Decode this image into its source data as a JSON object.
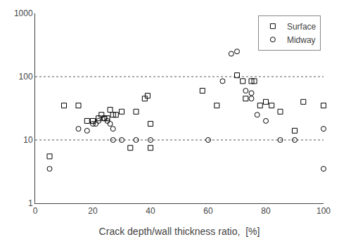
{
  "chart_data": {
    "type": "scatter",
    "xlabel": "Crack depth/wall thickness ratio,  [%]",
    "series": [
      {
        "name": "Surface",
        "color": "#000000",
        "marker": "square",
        "x": [
          5,
          10,
          15,
          18,
          20,
          22,
          23,
          24,
          25,
          26,
          27,
          28,
          30,
          33,
          35,
          38,
          39,
          40,
          40,
          58,
          63,
          70,
          72,
          73,
          75,
          76,
          78,
          80,
          82,
          85,
          90,
          93,
          100
        ],
        "values": [
          5.5,
          35,
          35,
          20,
          20,
          22,
          25,
          22,
          22,
          30,
          25,
          25,
          28,
          7.5,
          28,
          45,
          50,
          18,
          7.5,
          60,
          35,
          105,
          85,
          45,
          85,
          85,
          35,
          40,
          35,
          28,
          14,
          40,
          35
        ]
      },
      {
        "name": "Midway",
        "color": "#000000",
        "marker": "circle",
        "x": [
          5,
          15,
          18,
          20,
          21,
          22,
          24,
          25,
          26,
          27,
          27,
          30,
          35,
          40,
          60,
          65,
          68,
          70,
          73,
          75,
          75,
          77,
          80,
          85,
          90,
          100,
          100
        ],
        "values": [
          3.5,
          15,
          14,
          18,
          18,
          20,
          22,
          20,
          18,
          15,
          10,
          10,
          10,
          10,
          10,
          85,
          230,
          250,
          60,
          55,
          45,
          25,
          20,
          10,
          10,
          15,
          3.5
        ]
      }
    ],
    "xlim": [
      0,
      100
    ],
    "xticks": [
      0,
      20,
      40,
      60,
      80,
      100
    ],
    "ylim": [
      1,
      1000
    ],
    "yticks": [
      1,
      10,
      100,
      1000
    ],
    "log": "y",
    "hlines": [
      10,
      100
    ],
    "line_style": "dotted",
    "grid": false,
    "legend": "upper right"
  }
}
